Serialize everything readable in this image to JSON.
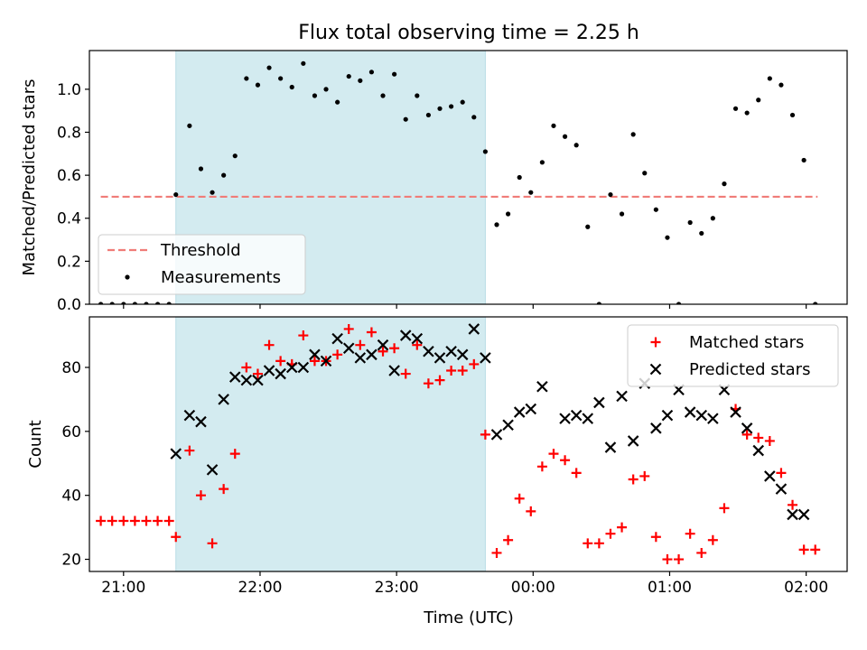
{
  "chart_data": {
    "title": "Flux total observing time = 2.25 h",
    "xlabel": "Time (UTC)",
    "x_ticks": [
      "21:00",
      "22:00",
      "23:00",
      "00:00",
      "01:00",
      "02:00"
    ],
    "x_range": [
      "20:45",
      "02:18"
    ],
    "shaded_interval": {
      "start": "21:23",
      "end": "23:39",
      "color": "#d3ebf0"
    },
    "top": {
      "type": "scatter",
      "ylabel": "Matched/Predicted stars",
      "ylim": [
        0,
        1.18
      ],
      "y_ticks": [
        "0.0",
        "0.2",
        "0.4",
        "0.6",
        "0.8",
        "1.0"
      ],
      "threshold": {
        "label": "Threshold",
        "value": 0.5,
        "x_start": "20:50",
        "x_end": "02:05",
        "color": "#f07c78"
      },
      "legend": {
        "placement": "lower-left",
        "entries": [
          "Threshold",
          "Measurements"
        ]
      },
      "series": [
        {
          "name": "Measurements",
          "color": "#000000",
          "x": [
            "20:50",
            "20:55",
            "21:00",
            "21:05",
            "21:10",
            "21:15",
            "21:20",
            "21:23",
            "21:29",
            "21:34",
            "21:39",
            "21:44",
            "21:49",
            "21:54",
            "21:59",
            "22:04",
            "22:09",
            "22:14",
            "22:19",
            "22:24",
            "22:29",
            "22:34",
            "22:39",
            "22:44",
            "22:49",
            "22:54",
            "22:59",
            "23:04",
            "23:09",
            "23:14",
            "23:19",
            "23:24",
            "23:29",
            "23:34",
            "23:39",
            "23:44",
            "23:49",
            "23:54",
            "23:59",
            "00:04",
            "00:09",
            "00:14",
            "00:19",
            "00:24",
            "00:29",
            "00:34",
            "00:39",
            "00:44",
            "00:49",
            "00:54",
            "00:59",
            "01:04",
            "01:09",
            "01:14",
            "01:19",
            "01:24",
            "01:29",
            "01:34",
            "01:39",
            "01:44",
            "01:49",
            "01:54",
            "01:59",
            "02:04"
          ],
          "y": [
            0,
            0,
            0,
            0,
            0,
            0,
            0,
            0.51,
            0.83,
            0.63,
            0.52,
            0.6,
            0.69,
            1.05,
            1.02,
            1.1,
            1.05,
            1.01,
            1.12,
            0.97,
            1.0,
            0.94,
            1.06,
            1.04,
            1.08,
            0.97,
            1.07,
            0.86,
            0.97,
            0.88,
            0.91,
            0.92,
            0.94,
            0.87,
            0.71,
            0.37,
            0.42,
            0.59,
            0.52,
            0.66,
            0.83,
            0.78,
            0.74,
            0.36,
            0,
            0.51,
            0.42,
            0.79,
            0.61,
            0.44,
            0.31,
            0,
            0.38,
            0.33,
            0.4,
            0.56,
            0.91,
            0.89,
            0.95,
            1.05,
            1.02,
            0.88,
            0.67,
            0
          ]
        }
      ]
    },
    "bottom": {
      "type": "scatter",
      "ylabel": "Count",
      "ylim": [
        16.2,
        95.8
      ],
      "y_ticks": [
        "20",
        "40",
        "60",
        "80"
      ],
      "legend": {
        "placement": "upper-right",
        "entries": [
          "Matched stars",
          "Predicted stars"
        ]
      },
      "series": [
        {
          "name": "Matched stars",
          "marker": "+",
          "color": "#ff0000",
          "x": [
            "20:50",
            "20:55",
            "21:00",
            "21:05",
            "21:10",
            "21:15",
            "21:20",
            "21:23",
            "21:29",
            "21:34",
            "21:39",
            "21:44",
            "21:49",
            "21:54",
            "21:59",
            "22:04",
            "22:09",
            "22:14",
            "22:19",
            "22:24",
            "22:29",
            "22:34",
            "22:39",
            "22:44",
            "22:49",
            "22:54",
            "22:59",
            "23:04",
            "23:09",
            "23:14",
            "23:19",
            "23:24",
            "23:29",
            "23:34",
            "23:39",
            "23:44",
            "23:49",
            "23:54",
            "23:59",
            "00:04",
            "00:09",
            "00:14",
            "00:19",
            "00:24",
            "00:29",
            "00:34",
            "00:39",
            "00:44",
            "00:49",
            "00:54",
            "00:59",
            "01:04",
            "01:09",
            "01:14",
            "01:19",
            "01:24",
            "01:29",
            "01:34",
            "01:39",
            "01:44",
            "01:49",
            "01:54",
            "01:59",
            "02:04"
          ],
          "y": [
            32,
            32,
            32,
            32,
            32,
            32,
            32,
            27,
            54,
            40,
            25,
            42,
            53,
            80,
            78,
            87,
            82,
            81,
            90,
            82,
            82,
            84,
            92,
            87,
            91,
            85,
            86,
            78,
            87,
            75,
            76,
            79,
            79,
            81,
            59,
            22,
            26,
            39,
            35,
            49,
            53,
            51,
            47,
            25,
            25,
            28,
            30,
            45,
            46,
            27,
            20,
            20,
            28,
            22,
            26,
            36,
            67,
            59,
            58,
            57,
            47,
            37,
            23,
            23
          ]
        },
        {
          "name": "Predicted stars",
          "marker": "x",
          "color": "#000000",
          "x": [
            "21:23",
            "21:29",
            "21:34",
            "21:39",
            "21:44",
            "21:49",
            "21:54",
            "21:59",
            "22:04",
            "22:09",
            "22:14",
            "22:19",
            "22:24",
            "22:29",
            "22:34",
            "22:39",
            "22:44",
            "22:49",
            "22:54",
            "22:59",
            "23:04",
            "23:09",
            "23:14",
            "23:19",
            "23:24",
            "23:29",
            "23:34",
            "23:39",
            "23:44",
            "23:49",
            "23:54",
            "23:59",
            "00:04",
            "00:14",
            "00:19",
            "00:24",
            "00:29",
            "00:34",
            "00:39",
            "00:44",
            "00:49",
            "00:54",
            "00:59",
            "01:04",
            "01:09",
            "01:14",
            "01:19",
            "01:24",
            "01:29",
            "01:34",
            "01:39",
            "01:44",
            "01:49",
            "01:54",
            "01:59"
          ],
          "y": [
            53,
            65,
            63,
            48,
            70,
            77,
            76,
            76,
            79,
            78,
            80,
            80,
            84,
            82,
            89,
            86,
            83,
            84,
            87,
            79,
            90,
            89,
            85,
            83,
            85,
            84,
            92,
            83,
            59,
            62,
            66,
            67,
            74,
            64,
            65,
            64,
            69,
            55,
            71,
            57,
            75,
            61,
            65,
            73,
            66,
            65,
            64,
            73,
            66,
            61,
            54,
            46,
            42,
            34,
            34
          ]
        }
      ]
    }
  }
}
